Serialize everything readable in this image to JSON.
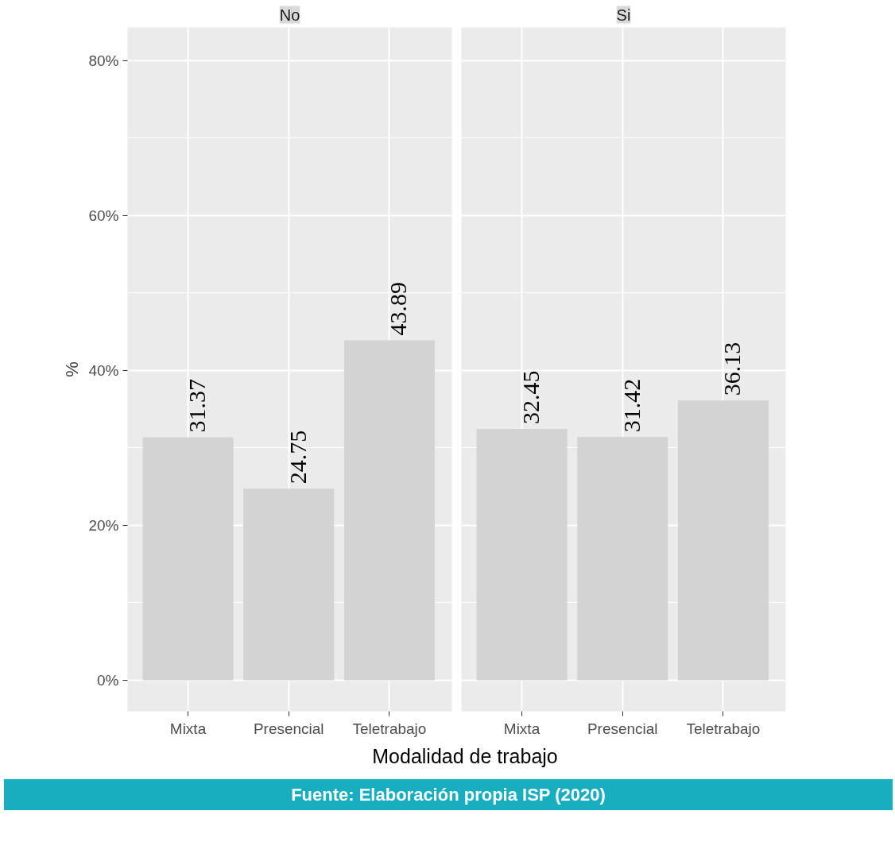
{
  "chart_data": [
    {
      "type": "bar",
      "title": "No",
      "categories": [
        "Mixta",
        "Presencial",
        "Teletrabajo"
      ],
      "values": [
        31.37,
        24.75,
        43.89
      ],
      "color": "#d3d3d3",
      "ylabel": "%",
      "xlabel": "Modalidad de trabajo",
      "ylim": [
        -4,
        84.3
      ],
      "yticks": [
        {
          "value": 0,
          "label": "0%"
        },
        {
          "value": 20,
          "label": "20%"
        },
        {
          "value": 40,
          "label": "40%"
        },
        {
          "value": 60,
          "label": "60%"
        },
        {
          "value": 80,
          "label": "80%"
        }
      ],
      "grid": true,
      "data_labels": true
    },
    {
      "type": "bar",
      "title": "Si",
      "categories": [
        "Mixta",
        "Presencial",
        "Teletrabajo"
      ],
      "values": [
        32.45,
        31.42,
        36.13
      ],
      "color": "#d3d3d3",
      "ylim": [
        -4,
        84.3
      ],
      "yticks": [
        {
          "value": 0,
          "label": null
        },
        {
          "value": 20,
          "label": null
        },
        {
          "value": 40,
          "label": null
        },
        {
          "value": 60,
          "label": null
        },
        {
          "value": 80,
          "label": null
        }
      ],
      "tick_labels": "x",
      "grid": true,
      "data_labels": true,
      "annotations": [
        "Fuente: Elaboración propia ISP (2020)"
      ]
    }
  ]
}
